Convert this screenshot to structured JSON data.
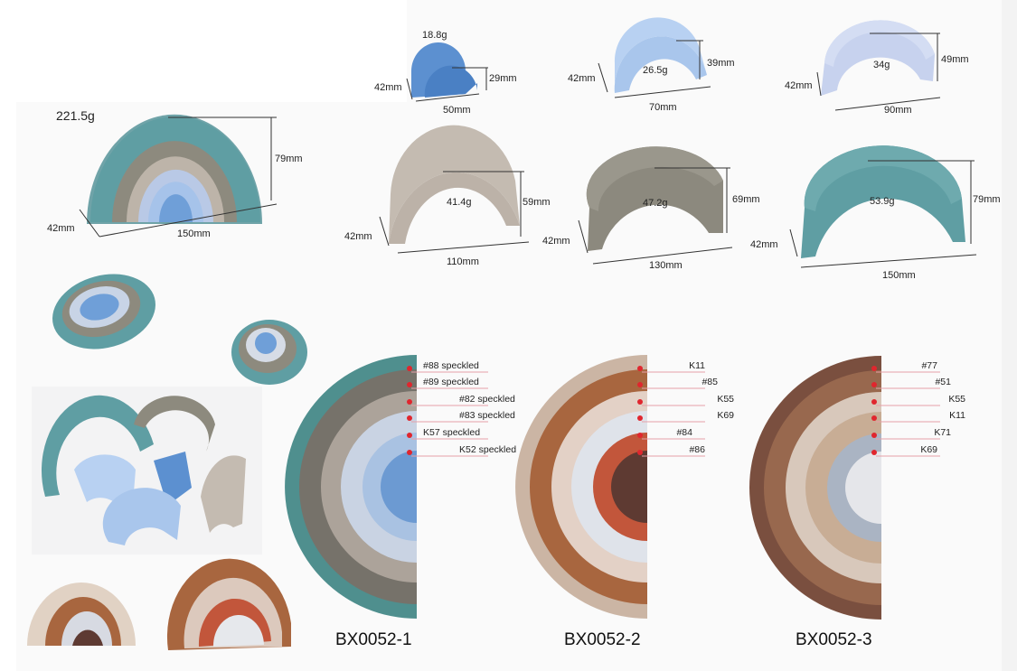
{
  "colors": {
    "teal": "#5f9ea3",
    "grey_taupe": "#8d8a7e",
    "beige_grey": "#bdb4a9",
    "pale_blue": "#b9c9e6",
    "light_blue": "#a6c3ea",
    "mid_blue": "#6f9fd8",
    "red_dot": "#e0262e"
  },
  "main_stack": {
    "weight": "221.5g",
    "height": "79mm",
    "depth": "42mm",
    "width": "150mm"
  },
  "pieces": [
    {
      "weight": "18.8g",
      "depth": "42mm",
      "height": "29mm",
      "width": "50mm"
    },
    {
      "weight": "26.5g",
      "depth": "42mm",
      "height": "39mm",
      "width": "70mm"
    },
    {
      "weight": "34g",
      "depth": "42mm",
      "height": "49mm",
      "width": "90mm"
    },
    {
      "weight": "41.4g",
      "depth": "42mm",
      "height": "59mm",
      "width": "110mm"
    },
    {
      "weight": "47.2g",
      "depth": "42mm",
      "height": "69mm",
      "width": "130mm"
    },
    {
      "weight": "53.9g",
      "depth": "42mm",
      "height": "79mm",
      "width": "150mm"
    }
  ],
  "variants": [
    {
      "code": "BX0052-1",
      "labels": [
        "#88 speckled",
        "#89 speckled",
        "#82 speckled",
        "#83 speckled",
        "K57 speckled",
        "K52 speckled"
      ],
      "colors": [
        "#4f8f8e",
        "#76726a",
        "#aca39a",
        "#c9d3e3",
        "#a9c2e2",
        "#6c9ad2"
      ]
    },
    {
      "code": "BX0052-2",
      "labels": [
        "K11",
        "#85",
        "K55",
        "K69",
        "#84",
        "#86"
      ],
      "colors": [
        "#cbb5a4",
        "#a8663f",
        "#e3d1c6",
        "#dfe3ea",
        "#c2563b",
        "#5e3a32"
      ]
    },
    {
      "code": "BX0052-3",
      "labels": [
        "#77",
        "#51",
        "K55",
        "K11",
        "K71",
        "K69"
      ],
      "colors": [
        "#7a4f3f",
        "#98684e",
        "#d8c8bb",
        "#c8ad95",
        "#aab4c3",
        "#e5e6ea"
      ]
    }
  ]
}
